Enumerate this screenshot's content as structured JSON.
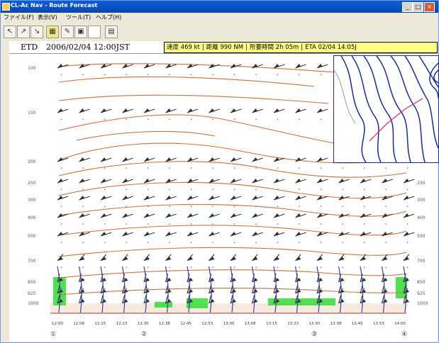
{
  "window": {
    "title": "CL-Ac Nav - Route Forecast",
    "min_glyph": "_",
    "max_glyph": "□",
    "close_glyph": "×"
  },
  "menu": {
    "items": [
      "ファイル(F)",
      "表示(V)",
      "ツール(T)",
      "ヘルプ(H)"
    ]
  },
  "toolbar": {
    "tools": [
      {
        "name": "profile-tool-1-icon",
        "glyph": "↖"
      },
      {
        "name": "profile-tool-2-icon",
        "glyph": "↗"
      },
      {
        "name": "profile-tool-3-icon",
        "glyph": "↘"
      },
      {
        "name": "grid-tool-icon",
        "glyph": "▦"
      },
      {
        "name": "settings-tool-icon",
        "glyph": "✎"
      },
      {
        "name": "save-tool-icon",
        "glyph": "▣"
      },
      {
        "name": "blank-tool-icon",
        "glyph": ""
      },
      {
        "name": "print-tool-icon",
        "glyph": "▤"
      }
    ]
  },
  "flight": {
    "etd_label": "ETD",
    "etd_value": "2006/02/04  12:00JST",
    "speed": "速度 469 kt",
    "distance": "距離 990 NM",
    "elapsed": "所要時間 2h 05m",
    "eta": "ETA 02/04  14:05J"
  },
  "axes": {
    "levels": [
      "100",
      "150",
      "200",
      "250",
      "300",
      "400",
      "500",
      "700",
      "850",
      "925",
      "1000"
    ],
    "times": [
      "12:00",
      "12:08",
      "12:15",
      "12:23",
      "12:30",
      "12:38",
      "12:45",
      "12:53",
      "13:00",
      "13:08",
      "13:15",
      "13:23",
      "13:30",
      "13:38",
      "13:45",
      "13:53",
      "14:00"
    ],
    "route_points": [
      "①",
      "②",
      "③",
      "④"
    ]
  },
  "colors": {
    "contour": "#c8703a",
    "temperature": "#8844cc",
    "surface": "#33dd33",
    "terrain": "#e8c0a0",
    "inset_lines": "#1a2aa0"
  }
}
